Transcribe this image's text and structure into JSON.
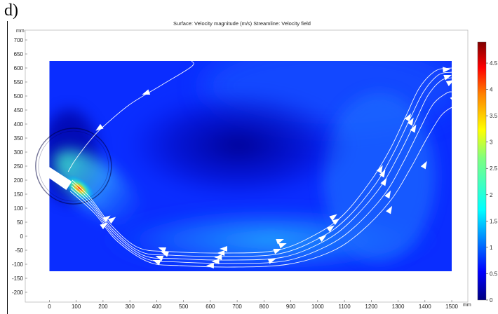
{
  "panel_label": "d)",
  "chart_data": {
    "type": "heatmap",
    "title": "Surface: Velocity magnitude (m/s)  Streamline: Velocity field",
    "x_unit": "mm",
    "y_unit": "mm",
    "xlim": [
      -90,
      1560
    ],
    "ylim": [
      -235,
      735
    ],
    "x_ticks": [
      0,
      100,
      200,
      300,
      400,
      500,
      600,
      700,
      800,
      900,
      1000,
      1100,
      1200,
      1300,
      1400,
      1500
    ],
    "y_ticks": [
      700,
      650,
      600,
      550,
      500,
      450,
      400,
      350,
      300,
      250,
      200,
      150,
      100,
      50,
      0,
      -50,
      -100,
      -150,
      -200
    ],
    "domain": {
      "x": [
        0,
        1500
      ],
      "y": [
        -125,
        625
      ]
    },
    "colorbar": {
      "range": [
        0,
        4.9
      ],
      "ticks": [
        0,
        0.5,
        1,
        1.5,
        2,
        2.5,
        3,
        3.5,
        4,
        4.5
      ],
      "labels": [
        "0",
        "0.5",
        "1",
        "1.5",
        "2",
        "2.5",
        "3",
        "3.5",
        "4",
        "4.5"
      ],
      "colors": [
        "#00007f",
        "#0000ff",
        "#007fff",
        "#00ffff",
        "#7fff7f",
        "#ffff00",
        "#ff7f00",
        "#ff0000",
        "#7f0000"
      ]
    },
    "inlet_jet": {
      "max_velocity": 4.9,
      "center": [
        75,
        200
      ]
    },
    "streamlines": [
      {
        "name": "upper",
        "points": [
          [
            530,
            625
          ],
          [
            530,
            605
          ],
          [
            420,
            540
          ],
          [
            300,
            470
          ],
          [
            200,
            390
          ],
          [
            150,
            340
          ],
          [
            95,
            270
          ],
          [
            70,
            230
          ]
        ]
      },
      {
        "name": "s1",
        "points": [
          [
            85,
            200
          ],
          [
            150,
            140
          ],
          [
            230,
            40
          ],
          [
            330,
            -40
          ],
          [
            450,
            -55
          ],
          [
            650,
            -60
          ],
          [
            850,
            -50
          ],
          [
            1000,
            10
          ],
          [
            1100,
            80
          ],
          [
            1200,
            200
          ],
          [
            1270,
            310
          ],
          [
            1330,
            430
          ],
          [
            1380,
            530
          ],
          [
            1440,
            590
          ],
          [
            1500,
            600
          ]
        ]
      },
      {
        "name": "s2",
        "points": [
          [
            85,
            190
          ],
          [
            155,
            125
          ],
          [
            235,
            25
          ],
          [
            340,
            -55
          ],
          [
            460,
            -68
          ],
          [
            660,
            -72
          ],
          [
            860,
            -62
          ],
          [
            1010,
            -5
          ],
          [
            1110,
            65
          ],
          [
            1215,
            185
          ],
          [
            1285,
            300
          ],
          [
            1345,
            420
          ],
          [
            1395,
            515
          ],
          [
            1450,
            575
          ],
          [
            1500,
            585
          ]
        ]
      },
      {
        "name": "s3",
        "points": [
          [
            82,
            180
          ],
          [
            160,
            110
          ],
          [
            240,
            12
          ],
          [
            350,
            -68
          ],
          [
            470,
            -80
          ],
          [
            670,
            -85
          ],
          [
            870,
            -75
          ],
          [
            1020,
            -20
          ],
          [
            1120,
            50
          ],
          [
            1230,
            170
          ],
          [
            1300,
            285
          ],
          [
            1360,
            400
          ],
          [
            1410,
            500
          ],
          [
            1460,
            555
          ],
          [
            1500,
            565
          ]
        ]
      },
      {
        "name": "s4",
        "points": [
          [
            80,
            170
          ],
          [
            165,
            95
          ],
          [
            245,
            -2
          ],
          [
            360,
            -80
          ],
          [
            480,
            -92
          ],
          [
            680,
            -97
          ],
          [
            880,
            -88
          ],
          [
            1035,
            -35
          ],
          [
            1140,
            35
          ],
          [
            1250,
            150
          ],
          [
            1320,
            265
          ],
          [
            1380,
            380
          ],
          [
            1430,
            470
          ],
          [
            1480,
            510
          ],
          [
            1500,
            515
          ]
        ]
      },
      {
        "name": "s5",
        "points": [
          [
            78,
            160
          ],
          [
            170,
            80
          ],
          [
            250,
            -15
          ],
          [
            370,
            -92
          ],
          [
            490,
            -105
          ],
          [
            690,
            -110
          ],
          [
            890,
            -100
          ],
          [
            1050,
            -55
          ],
          [
            1160,
            15
          ],
          [
            1270,
            125
          ],
          [
            1345,
            240
          ],
          [
            1405,
            345
          ],
          [
            1460,
            430
          ],
          [
            1500,
            460
          ]
        ]
      }
    ],
    "arrows": [
      {
        "x": 360,
        "y": 510,
        "dir": 200
      },
      {
        "x": 185,
        "y": 385,
        "dir": 215
      },
      {
        "x": 215,
        "y": 65,
        "dir": 35
      },
      {
        "x": 235,
        "y": 60,
        "dir": 35
      },
      {
        "x": 205,
        "y": 40,
        "dir": 35
      },
      {
        "x": 420,
        "y": -45,
        "dir": 160
      },
      {
        "x": 430,
        "y": -60,
        "dir": 160
      },
      {
        "x": 410,
        "y": -75,
        "dir": 160
      },
      {
        "x": 400,
        "y": -90,
        "dir": 160
      },
      {
        "x": 650,
        "y": -45,
        "dir": 180
      },
      {
        "x": 640,
        "y": -60,
        "dir": 180
      },
      {
        "x": 630,
        "y": -75,
        "dir": 180
      },
      {
        "x": 620,
        "y": -90,
        "dir": 180
      },
      {
        "x": 600,
        "y": -105,
        "dir": 180
      },
      {
        "x": 860,
        "y": -15,
        "dir": 20
      },
      {
        "x": 870,
        "y": -30,
        "dir": 20
      },
      {
        "x": 850,
        "y": -50,
        "dir": 20
      },
      {
        "x": 830,
        "y": -85,
        "dir": 20
      },
      {
        "x": 1060,
        "y": 70,
        "dir": 35
      },
      {
        "x": 1070,
        "y": 55,
        "dir": 35
      },
      {
        "x": 1050,
        "y": 30,
        "dir": 35
      },
      {
        "x": 1020,
        "y": -5,
        "dir": 35
      },
      {
        "x": 1235,
        "y": 240,
        "dir": 60
      },
      {
        "x": 1245,
        "y": 225,
        "dir": 60
      },
      {
        "x": 1250,
        "y": 195,
        "dir": 60
      },
      {
        "x": 1265,
        "y": 150,
        "dir": 60
      },
      {
        "x": 1270,
        "y": 95,
        "dir": 60
      },
      {
        "x": 1340,
        "y": 425,
        "dir": 60
      },
      {
        "x": 1350,
        "y": 410,
        "dir": 60
      },
      {
        "x": 1360,
        "y": 385,
        "dir": 60
      },
      {
        "x": 1400,
        "y": 255,
        "dir": 60
      },
      {
        "x": 1480,
        "y": 595,
        "dir": 5
      },
      {
        "x": 1485,
        "y": 570,
        "dir": 20
      },
      {
        "x": 1495,
        "y": 550,
        "dir": 30
      },
      {
        "x": 1510,
        "y": 495,
        "dir": 45
      }
    ]
  }
}
